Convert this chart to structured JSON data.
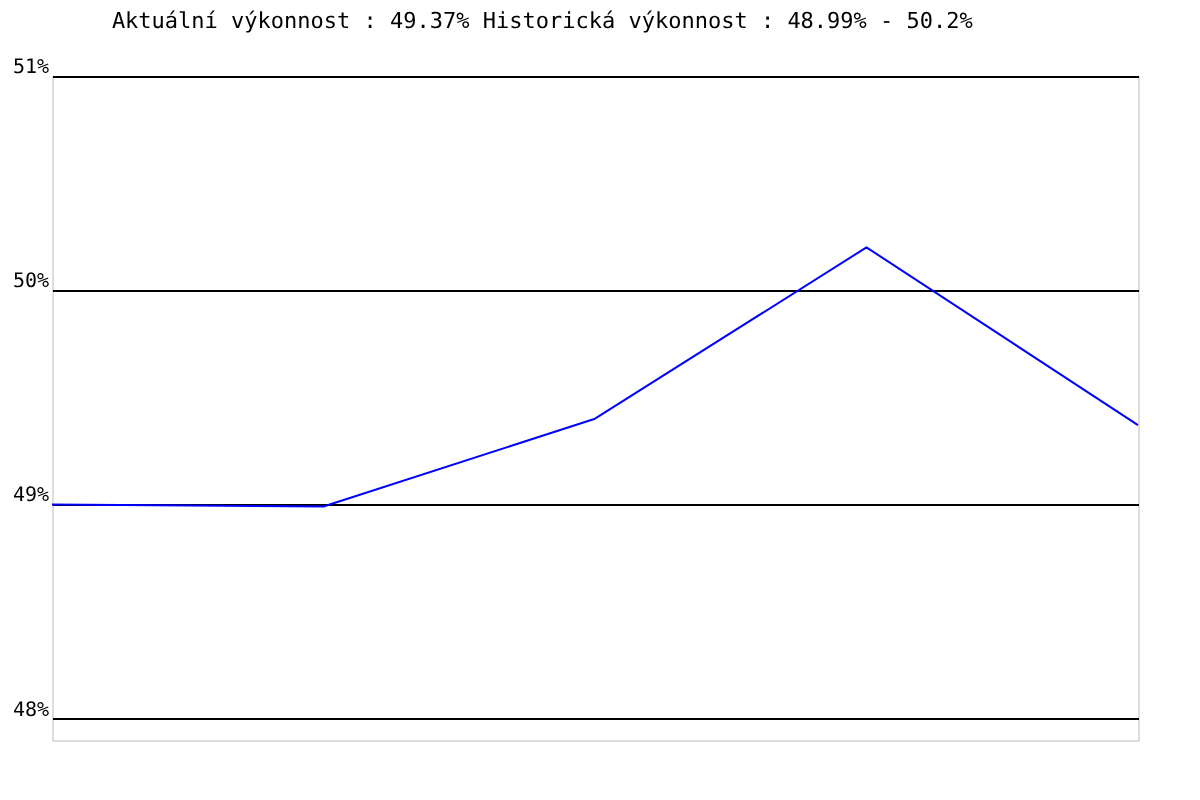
{
  "chart_data": {
    "type": "line",
    "title": "Aktuální výkonnost : 49.37%  Historická výkonnost : 48.99% - 50.2%",
    "categories": [
      null,
      null,
      null,
      null,
      null
    ],
    "series": [
      {
        "color": "#0000ff",
        "values": [
          49.0,
          48.99,
          49.4,
          50.2,
          49.37
        ]
      }
    ],
    "ylim": [
      47.9,
      51
    ],
    "yticks": [
      {
        "value": 48,
        "label": "48%"
      },
      {
        "value": 49,
        "label": "49%"
      },
      {
        "value": 50,
        "label": "50%"
      },
      {
        "value": 51,
        "label": "51%"
      }
    ],
    "grid": "y",
    "tick_labels": "y",
    "marker": "none",
    "line_style": "solid"
  }
}
